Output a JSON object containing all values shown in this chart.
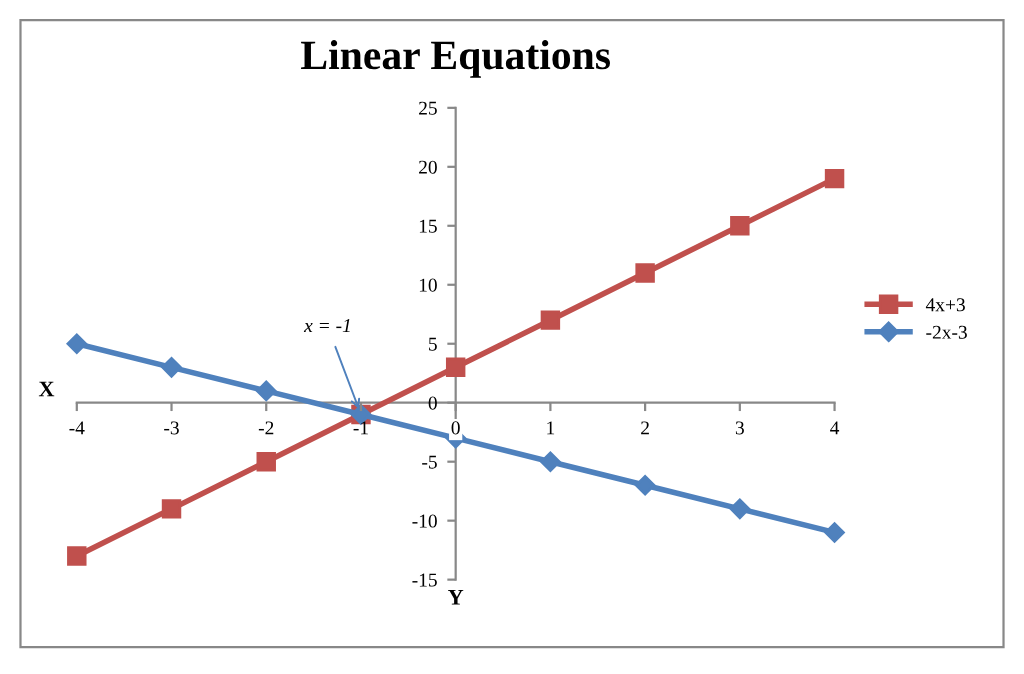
{
  "chart_data": {
    "type": "line",
    "title": "Linear Equations",
    "x": [
      -4,
      -3,
      -2,
      -1,
      0,
      1,
      2,
      3,
      4
    ],
    "series": [
      {
        "name": "4x+3",
        "color": "#c0504d",
        "marker": "square",
        "values": [
          -13,
          -9,
          -5,
          -1,
          3,
          7,
          11,
          15,
          19
        ]
      },
      {
        "name": "-2x-3",
        "color": "#4f81bd",
        "marker": "diamond",
        "values": [
          5,
          3,
          1,
          -1,
          -3,
          -5,
          -7,
          -9,
          -11
        ]
      }
    ],
    "annotations": [
      {
        "text": "x = -1",
        "x": -1,
        "y": -1
      },
      "X",
      "Y"
    ],
    "xlim": [
      -4,
      4
    ],
    "xticks": [
      -4,
      -3,
      -2,
      -1,
      0,
      1,
      2,
      3,
      4
    ],
    "ylim": [
      -15,
      25
    ],
    "yticks": [
      -15,
      -10,
      -5,
      0,
      5,
      10,
      15,
      20,
      25
    ],
    "grid": false,
    "legend": "right",
    "line_style": "solid"
  }
}
